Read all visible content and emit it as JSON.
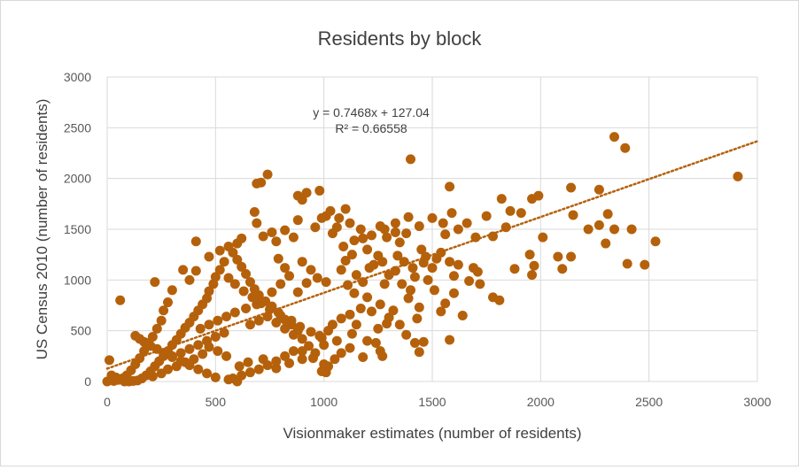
{
  "chart_data": {
    "type": "scatter",
    "title": "Residents by block",
    "xlabel": "Visionmaker estimates (number of residents)",
    "ylabel": "US Census 2010 (number of residents)",
    "xlim": [
      0,
      3000
    ],
    "ylim": [
      0,
      3000
    ],
    "x_ticks": [
      "0",
      "500",
      "1000",
      "1500",
      "2000",
      "2500",
      "3000"
    ],
    "y_ticks": [
      "0",
      "500",
      "1000",
      "1500",
      "2000",
      "2500",
      "3000"
    ],
    "grid": true,
    "legend": "none",
    "marker_color": "#b5610b",
    "trendline": {
      "type": "linear",
      "slope": 0.7468,
      "intercept": 127.04,
      "equation_label": "y = 0.7468x + 127.04",
      "r2_label": "R² = 0.66558"
    },
    "points": [
      [
        2340,
        2410
      ],
      [
        2390,
        2300
      ],
      [
        1400,
        2190
      ],
      [
        2910,
        2020
      ],
      [
        740,
        2040
      ],
      [
        710,
        1960
      ],
      [
        690,
        1950
      ],
      [
        980,
        1880
      ],
      [
        880,
        1830
      ],
      [
        920,
        1860
      ],
      [
        1580,
        1920
      ],
      [
        1820,
        1800
      ],
      [
        1990,
        1830
      ],
      [
        1960,
        1800
      ],
      [
        2140,
        1910
      ],
      [
        2270,
        1890
      ],
      [
        1590,
        1660
      ],
      [
        1860,
        1680
      ],
      [
        1750,
        1630
      ],
      [
        1660,
        1560
      ],
      [
        2150,
        1640
      ],
      [
        2310,
        1650
      ],
      [
        2340,
        1500
      ],
      [
        1910,
        1660
      ],
      [
        1840,
        1520
      ],
      [
        1780,
        1430
      ],
      [
        1700,
        1420
      ],
      [
        2010,
        1420
      ],
      [
        2420,
        1500
      ],
      [
        2270,
        1540
      ],
      [
        2220,
        1500
      ],
      [
        2300,
        1360
      ],
      [
        2530,
        1380
      ],
      [
        2080,
        1230
      ],
      [
        2100,
        1110
      ],
      [
        2140,
        1230
      ],
      [
        1950,
        1250
      ],
      [
        1970,
        1140
      ],
      [
        1960,
        1050
      ],
      [
        2400,
        1160
      ],
      [
        2480,
        1150
      ],
      [
        1880,
        1110
      ],
      [
        1690,
        1120
      ],
      [
        1710,
        1080
      ],
      [
        1720,
        960
      ],
      [
        1670,
        990
      ],
      [
        1600,
        1040
      ],
      [
        1620,
        1150
      ],
      [
        1580,
        1180
      ],
      [
        1450,
        1300
      ],
      [
        1470,
        1230
      ],
      [
        1540,
        1270
      ],
      [
        1520,
        1210
      ],
      [
        1500,
        1120
      ],
      [
        1480,
        1000
      ],
      [
        1510,
        900
      ],
      [
        1420,
        1030
      ],
      [
        1400,
        900
      ],
      [
        1360,
        960
      ],
      [
        1390,
        820
      ],
      [
        1430,
        620
      ],
      [
        1460,
        390
      ],
      [
        1580,
        410
      ],
      [
        1640,
        650
      ],
      [
        1560,
        770
      ],
      [
        1600,
        870
      ],
      [
        1780,
        830
      ],
      [
        1810,
        800
      ],
      [
        1540,
        690
      ],
      [
        1440,
        730
      ],
      [
        1300,
        1050
      ],
      [
        1280,
        960
      ],
      [
        1330,
        1090
      ],
      [
        1230,
        1150
      ],
      [
        1250,
        1240
      ],
      [
        1200,
        1300
      ],
      [
        1180,
        1410
      ],
      [
        1350,
        1370
      ],
      [
        1380,
        1460
      ],
      [
        1330,
        1470
      ],
      [
        1290,
        1420
      ],
      [
        1260,
        1530
      ],
      [
        1140,
        1390
      ],
      [
        1090,
        1330
      ],
      [
        1060,
        1520
      ],
      [
        1040,
        1460
      ],
      [
        1010,
        1630
      ],
      [
        960,
        1520
      ],
      [
        990,
        1610
      ],
      [
        900,
        1790
      ],
      [
        880,
        1590
      ],
      [
        860,
        1420
      ],
      [
        820,
        1490
      ],
      [
        780,
        1380
      ],
      [
        760,
        1470
      ],
      [
        720,
        1430
      ],
      [
        680,
        1670
      ],
      [
        690,
        1560
      ],
      [
        1100,
        1190
      ],
      [
        1130,
        1250
      ],
      [
        1080,
        1100
      ],
      [
        1010,
        980
      ],
      [
        970,
        1020
      ],
      [
        940,
        1100
      ],
      [
        900,
        1180
      ],
      [
        920,
        970
      ],
      [
        880,
        880
      ],
      [
        840,
        1040
      ],
      [
        820,
        1120
      ],
      [
        800,
        960
      ],
      [
        790,
        1210
      ],
      [
        760,
        880
      ],
      [
        1140,
        870
      ],
      [
        1110,
        950
      ],
      [
        1180,
        980
      ],
      [
        1200,
        830
      ],
      [
        1170,
        720
      ],
      [
        1220,
        690
      ],
      [
        1260,
        760
      ],
      [
        1320,
        700
      ],
      [
        1290,
        570
      ],
      [
        1250,
        520
      ],
      [
        1150,
        560
      ],
      [
        1120,
        660
      ],
      [
        1080,
        620
      ],
      [
        1040,
        560
      ],
      [
        1020,
        500
      ],
      [
        990,
        430
      ],
      [
        1000,
        360
      ],
      [
        1130,
        470
      ],
      [
        1200,
        400
      ],
      [
        1240,
        380
      ],
      [
        1260,
        300
      ],
      [
        1270,
        250
      ],
      [
        1050,
        220
      ],
      [
        1000,
        170
      ],
      [
        1020,
        150
      ],
      [
        960,
        280
      ],
      [
        930,
        350
      ],
      [
        900,
        420
      ],
      [
        880,
        500
      ],
      [
        850,
        560
      ],
      [
        820,
        610
      ],
      [
        790,
        680
      ],
      [
        760,
        740
      ],
      [
        730,
        790
      ],
      [
        700,
        850
      ],
      [
        680,
        910
      ],
      [
        660,
        980
      ],
      [
        640,
        1060
      ],
      [
        620,
        1130
      ],
      [
        600,
        1200
      ],
      [
        580,
        1270
      ],
      [
        600,
        1360
      ],
      [
        620,
        1410
      ],
      [
        560,
        1330
      ],
      [
        540,
        1180
      ],
      [
        520,
        1100
      ],
      [
        500,
        1030
      ],
      [
        490,
        960
      ],
      [
        470,
        890
      ],
      [
        460,
        820
      ],
      [
        440,
        760
      ],
      [
        420,
        700
      ],
      [
        400,
        640
      ],
      [
        380,
        580
      ],
      [
        360,
        530
      ],
      [
        340,
        470
      ],
      [
        320,
        410
      ],
      [
        300,
        360
      ],
      [
        280,
        300
      ],
      [
        260,
        250
      ],
      [
        240,
        200
      ],
      [
        220,
        150
      ],
      [
        200,
        100
      ],
      [
        180,
        60
      ],
      [
        160,
        30
      ],
      [
        140,
        10
      ],
      [
        120,
        5
      ],
      [
        100,
        0
      ],
      [
        80,
        0
      ],
      [
        60,
        20
      ],
      [
        40,
        40
      ],
      [
        20,
        60
      ],
      [
        10,
        210
      ],
      [
        0,
        0
      ],
      [
        60,
        800
      ],
      [
        220,
        980
      ],
      [
        380,
        1000
      ],
      [
        410,
        1090
      ],
      [
        350,
        1100
      ],
      [
        300,
        900
      ],
      [
        280,
        780
      ],
      [
        260,
        700
      ],
      [
        250,
        600
      ],
      [
        230,
        520
      ],
      [
        210,
        440
      ],
      [
        190,
        380
      ],
      [
        170,
        300
      ],
      [
        150,
        230
      ],
      [
        130,
        170
      ],
      [
        110,
        110
      ],
      [
        90,
        60
      ],
      [
        70,
        30
      ],
      [
        50,
        15
      ],
      [
        30,
        5
      ],
      [
        410,
        1380
      ],
      [
        470,
        1230
      ],
      [
        520,
        1290
      ],
      [
        560,
        1020
      ],
      [
        590,
        960
      ],
      [
        630,
        890
      ],
      [
        670,
        830
      ],
      [
        710,
        770
      ],
      [
        750,
        710
      ],
      [
        800,
        650
      ],
      [
        850,
        600
      ],
      [
        890,
        540
      ],
      [
        940,
        490
      ],
      [
        980,
        450
      ],
      [
        860,
        300
      ],
      [
        820,
        250
      ],
      [
        780,
        200
      ],
      [
        740,
        160
      ],
      [
        700,
        120
      ],
      [
        660,
        90
      ],
      [
        620,
        60
      ],
      [
        580,
        30
      ],
      [
        560,
        20
      ],
      [
        600,
        0
      ],
      [
        500,
        40
      ],
      [
        460,
        80
      ],
      [
        420,
        120
      ],
      [
        380,
        160
      ],
      [
        340,
        200
      ],
      [
        300,
        240
      ],
      [
        260,
        280
      ],
      [
        230,
        320
      ],
      [
        200,
        350
      ],
      [
        170,
        390
      ],
      [
        150,
        420
      ],
      [
        130,
        450
      ],
      [
        430,
        520
      ],
      [
        470,
        560
      ],
      [
        510,
        600
      ],
      [
        550,
        640
      ],
      [
        590,
        680
      ],
      [
        640,
        720
      ],
      [
        690,
        760
      ],
      [
        540,
        480
      ],
      [
        500,
        440
      ],
      [
        460,
        400
      ],
      [
        420,
        360
      ],
      [
        380,
        320
      ],
      [
        340,
        280
      ],
      [
        300,
        250
      ],
      [
        660,
        560
      ],
      [
        700,
        600
      ],
      [
        740,
        640
      ],
      [
        780,
        580
      ],
      [
        820,
        520
      ],
      [
        860,
        460
      ],
      [
        900,
        300
      ],
      [
        950,
        230
      ],
      [
        1010,
        90
      ],
      [
        990,
        100
      ],
      [
        900,
        220
      ],
      [
        840,
        180
      ],
      [
        780,
        130
      ],
      [
        720,
        220
      ],
      [
        650,
        190
      ],
      [
        610,
        150
      ],
      [
        550,
        250
      ],
      [
        510,
        300
      ],
      [
        470,
        340
      ],
      [
        440,
        270
      ],
      [
        400,
        220
      ],
      [
        360,
        190
      ],
      [
        320,
        150
      ],
      [
        280,
        120
      ],
      [
        250,
        80
      ],
      [
        210,
        50
      ],
      [
        1300,
        630
      ],
      [
        1350,
        560
      ],
      [
        1380,
        460
      ],
      [
        1420,
        380
      ],
      [
        1440,
        290
      ],
      [
        1180,
        240
      ],
      [
        1120,
        330
      ],
      [
        1060,
        400
      ],
      [
        1080,
        280
      ],
      [
        1150,
        1050
      ],
      [
        1210,
        1120
      ],
      [
        1270,
        1180
      ],
      [
        1340,
        1240
      ],
      [
        1370,
        1180
      ],
      [
        1410,
        1120
      ],
      [
        1460,
        1170
      ],
      [
        1560,
        1450
      ],
      [
        1620,
        1500
      ],
      [
        1550,
        1560
      ],
      [
        1500,
        1610
      ],
      [
        1440,
        1530
      ],
      [
        1390,
        1620
      ],
      [
        1330,
        1560
      ],
      [
        1280,
        1500
      ],
      [
        1220,
        1440
      ],
      [
        1170,
        1500
      ],
      [
        1120,
        1560
      ],
      [
        1070,
        1610
      ],
      [
        1030,
        1680
      ],
      [
        1100,
        1700
      ]
    ]
  }
}
